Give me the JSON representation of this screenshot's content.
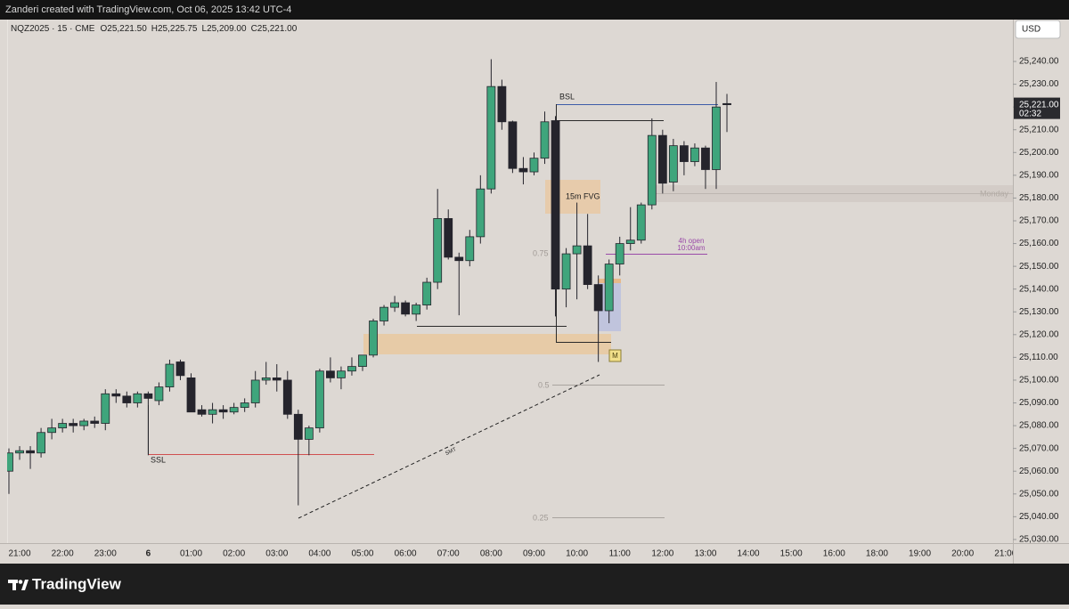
{
  "top_bar": {
    "text": "Zanderi created with TradingView.com, Oct 06, 2025 13:42 UTC-4"
  },
  "chart_data": {
    "type": "candlestick",
    "symbol": "NQZ2025 · 15 · CME",
    "legend": [
      {
        "key": "O",
        "value": "25,221.50"
      },
      {
        "key": "H",
        "value": "25,225.75"
      },
      {
        "key": "L",
        "value": "25,209.00"
      },
      {
        "key": "C",
        "value": "25,221.00"
      }
    ],
    "currency": "USD",
    "categories": [
      null,
      "21:00",
      null,
      null,
      null,
      "22:00",
      null,
      null,
      null,
      "23:00",
      null,
      null,
      null,
      "6",
      null,
      null,
      null,
      "01:00",
      null,
      null,
      null,
      "02:00",
      null,
      null,
      null,
      "03:00",
      null,
      null,
      null,
      "04:00",
      null,
      null,
      null,
      "05:00",
      null,
      null,
      null,
      "06:00",
      null,
      null,
      null,
      "07:00",
      null,
      null,
      null,
      "08:00",
      null,
      null,
      null,
      "09:00",
      null,
      null,
      null,
      "10:00",
      null,
      null,
      null,
      "11:00",
      null,
      null,
      null,
      "12:00",
      null,
      null,
      null,
      "13:00",
      null,
      null,
      null,
      "14:00",
      null,
      null,
      null,
      "15:00",
      null,
      null,
      null,
      "16:00",
      null,
      null,
      null,
      "18:00",
      null,
      null,
      null,
      "19:00",
      null,
      null,
      null,
      "20:00",
      null,
      null,
      null,
      "21:00"
    ],
    "open": [
      25060,
      25068,
      25069,
      25068,
      25077,
      25079,
      25081,
      25080,
      25082,
      25081,
      25094,
      25093,
      25090,
      25094,
      25091,
      25097,
      25108,
      25101,
      25087,
      25085,
      25087,
      25086,
      25088,
      25090,
      25100,
      25101,
      25100,
      25085,
      25074,
      25079,
      25104,
      25101,
      25104,
      25106,
      25111,
      25126,
      25132,
      25134,
      25129,
      25133,
      25143,
      25171,
      25154,
      25152.5,
      25163,
      25184,
      25229,
      25213.5,
      25193,
      25191.5,
      25197.5,
      25214,
      25140,
      25155.5,
      25159,
      25142,
      25130.5,
      25151,
      25160,
      25161.5,
      25177,
      25207.5,
      25187,
      25203,
      25196,
      25202,
      25192.5,
      25221.5,
      null,
      null,
      null,
      null,
      null,
      null,
      null,
      null,
      null,
      null,
      null,
      null,
      null,
      null,
      null,
      null,
      null,
      null,
      null,
      null,
      null,
      null,
      null,
      null,
      null,
      null
    ],
    "high": [
      25070,
      25071,
      25071,
      25079,
      25083,
      25083,
      25083,
      25083,
      25084,
      25096,
      25096,
      25095,
      25095,
      25095,
      25099,
      25109,
      25109,
      25103,
      25089,
      25090,
      25089,
      25090,
      25092,
      25104,
      25108,
      25107,
      25104,
      25087,
      25080,
      25105,
      25110,
      25106,
      25110,
      25111,
      25127,
      25133,
      25137,
      25135,
      25134,
      25145,
      25184,
      25175,
      25156,
      25166,
      25190,
      25241,
      25232,
      25214,
      25198,
      25200,
      25218,
      25216,
      25158,
      25178,
      25173,
      25146,
      25153,
      25163,
      25176,
      25178,
      25215,
      25210,
      25206,
      25205,
      25204,
      25203,
      25231,
      25225.75,
      null,
      null,
      null,
      null,
      null,
      null,
      null,
      null,
      null,
      null,
      null,
      null,
      null,
      null,
      null,
      null,
      null,
      null,
      null,
      null,
      null,
      null,
      null,
      null,
      null,
      null
    ],
    "low": [
      25050,
      25065,
      25061,
      25066,
      25074,
      25077,
      25077,
      25078,
      25079,
      25078,
      25090,
      25088,
      25088,
      25067,
      25089,
      25095,
      25100,
      25086,
      25084,
      25081,
      25083,
      25085,
      25086,
      25088,
      25098,
      25095,
      25083,
      25045,
      25067,
      25077,
      25099,
      25096,
      25102,
      25104,
      25110,
      25124,
      25130,
      25128,
      25126,
      25131,
      25140,
      25153,
      25128.5,
      25150,
      25160,
      25182,
      25210,
      25191,
      25186,
      25190,
      25195,
      25128,
      25132,
      25135.5,
      25140,
      25108,
      25125,
      25146,
      25157,
      25160,
      25175,
      25182,
      25183,
      25190,
      25194,
      25184,
      25184,
      25209,
      null,
      null,
      null,
      null,
      null,
      null,
      null,
      null,
      null,
      null,
      null,
      null,
      null,
      null,
      null,
      null,
      null,
      null,
      null,
      null,
      null,
      null,
      null,
      null,
      null,
      null
    ],
    "close": [
      25068,
      25069,
      25068,
      25077,
      25079,
      25081,
      25080,
      25082,
      25081,
      25094,
      25093,
      25090,
      25094,
      25092,
      25097,
      25107,
      25102,
      25086,
      25085,
      25087,
      25086,
      25088,
      25090,
      25100,
      25101,
      25100,
      25085,
      25074,
      25079,
      25104,
      25101,
      25104,
      25106,
      25111,
      25126,
      25132,
      25134,
      25129,
      25133,
      25143,
      25171,
      25154,
      25152.5,
      25163,
      25184,
      25229,
      25213.5,
      25193,
      25191.5,
      25197.5,
      25213.5,
      25140,
      25155.5,
      25159,
      25142,
      25130.5,
      25151,
      25160,
      25161.5,
      25177,
      25207.5,
      25186.5,
      25203,
      25196,
      25202,
      25192.5,
      25220,
      25221,
      null,
      null,
      null,
      null,
      null,
      null,
      null,
      null,
      null,
      null,
      null,
      null,
      null,
      null,
      null,
      null,
      null,
      null,
      null,
      null,
      null,
      null,
      null,
      null,
      null,
      null
    ],
    "up_color": "#3fa57c",
    "down_color": "#25242c",
    "ylim": [
      25028.4,
      25258.4
    ],
    "yticks": [
      {
        "value": 25030,
        "label": "25,030.00"
      },
      {
        "value": 25040,
        "label": "25,040.00"
      },
      {
        "value": 25050,
        "label": "25,050.00"
      },
      {
        "value": 25060,
        "label": "25,060.00"
      },
      {
        "value": 25070,
        "label": "25,070.00"
      },
      {
        "value": 25080,
        "label": "25,080.00"
      },
      {
        "value": 25090,
        "label": "25,090.00"
      },
      {
        "value": 25100,
        "label": "25,100.00"
      },
      {
        "value": 25110,
        "label": "25,110.00"
      },
      {
        "value": 25120,
        "label": "25,120.00"
      },
      {
        "value": 25130,
        "label": "25,130.00"
      },
      {
        "value": 25140,
        "label": "25,140.00"
      },
      {
        "value": 25150,
        "label": "25,150.00"
      },
      {
        "value": 25160,
        "label": "25,160.00"
      },
      {
        "value": 25170,
        "label": "25,170.00"
      },
      {
        "value": 25180,
        "label": "25,180.00"
      },
      {
        "value": 25190,
        "label": "25,190.00"
      },
      {
        "value": 25200,
        "label": "25,200.00"
      },
      {
        "value": 25210,
        "label": "25,210.00"
      },
      {
        "value": 25220,
        "label": "25,220.00"
      },
      {
        "value": 25230,
        "label": "25,230.00"
      },
      {
        "value": 25240,
        "label": "25,240.00"
      }
    ],
    "grid": false,
    "last_price": {
      "value": 25221,
      "label": "25,221.00"
    },
    "countdown": "02:32",
    "annotations": {
      "bsl": "BSL",
      "ssl": "SSL",
      "fvg": "15m FVG",
      "monday": "Monday",
      "open_4h": "4h open",
      "open_time": "10:00am",
      "fib_075": "0.75",
      "fib_05": "0.5",
      "fib_025": "0.25",
      "smt": "SMT",
      "marker": "M"
    }
  },
  "footer": {
    "brand": "TradingView"
  }
}
